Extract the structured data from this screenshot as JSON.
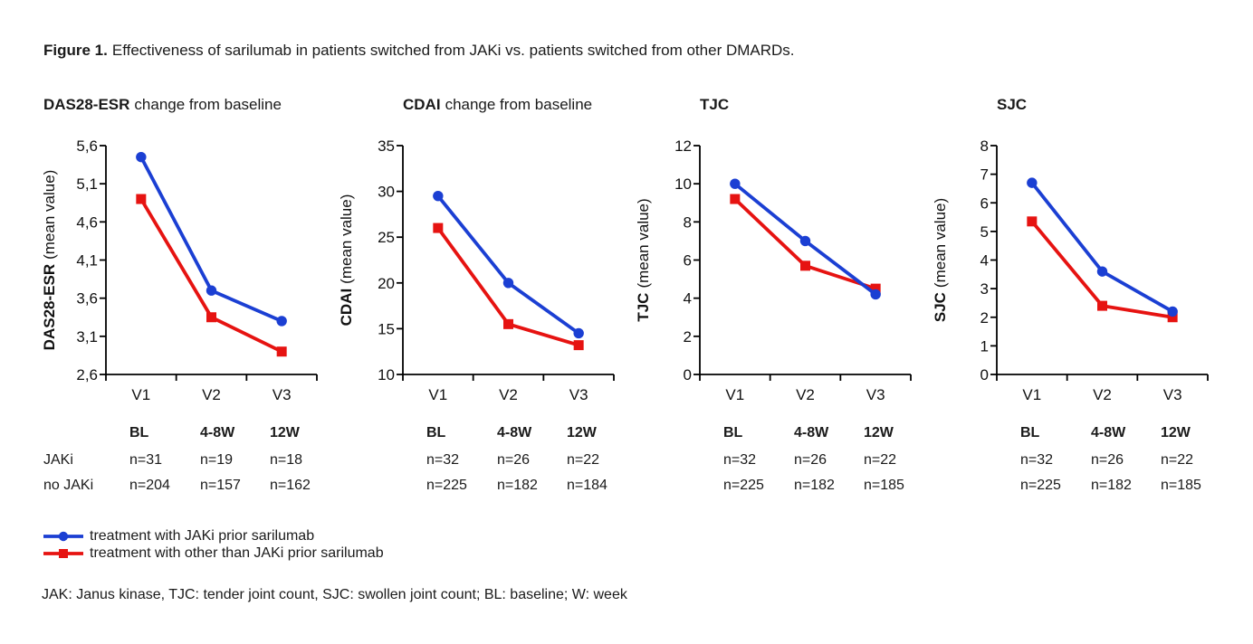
{
  "figure": {
    "label": "Figure 1.",
    "caption": "Effectiveness of sarilumab in patients switched from JAKi vs. patients switched from other DMARDs."
  },
  "colors": {
    "jaki": "#1b3fd3",
    "no_jaki": "#e61311"
  },
  "chart_data": [
    {
      "type": "line",
      "title_bold": "DAS28-ESR",
      "title_rest": "change from baseline",
      "ylabel_bold": "DAS28-ESR",
      "ylabel_rest": "(mean value)",
      "ylim": [
        2.6,
        5.6
      ],
      "ytick_labels": [
        "2,6",
        "3,1",
        "3,6",
        "4,1",
        "4,6",
        "5,1",
        "5,6"
      ],
      "categories": [
        "V1",
        "V2",
        "V3"
      ],
      "series": [
        {
          "name": "treatment with JAKi prior sarilumab",
          "marker": "circle",
          "color_key": "jaki",
          "values": [
            5.45,
            3.7,
            3.3
          ]
        },
        {
          "name": "treatment with other than JAKi prior sarilumab",
          "marker": "square",
          "color_key": "no_jaki",
          "values": [
            4.9,
            3.35,
            2.9
          ]
        }
      ],
      "table": {
        "headers": [
          "BL",
          "4-8W",
          "12W"
        ],
        "row_labels": [
          "JAKi",
          "no JAKi"
        ],
        "rows": [
          [
            "n=31",
            "n=19",
            "n=18"
          ],
          [
            "n=204",
            "n=157",
            "n=162"
          ]
        ]
      }
    },
    {
      "type": "line",
      "title_bold": "CDAI",
      "title_rest": "change from baseline",
      "ylabel_bold": "CDAI",
      "ylabel_rest": "(mean value)",
      "ylim": [
        10,
        35
      ],
      "ytick_labels": [
        "10",
        "15",
        "20",
        "25",
        "30",
        "35"
      ],
      "categories": [
        "V1",
        "V2",
        "V3"
      ],
      "series": [
        {
          "name": "treatment with JAKi prior sarilumab",
          "marker": "circle",
          "color_key": "jaki",
          "values": [
            29.5,
            20,
            14.5
          ]
        },
        {
          "name": "treatment with other than JAKi prior sarilumab",
          "marker": "square",
          "color_key": "no_jaki",
          "values": [
            26,
            15.5,
            13.2
          ]
        }
      ],
      "table": {
        "headers": [
          "BL",
          "4-8W",
          "12W"
        ],
        "rows": [
          [
            "n=32",
            "n=26",
            "n=22"
          ],
          [
            "n=225",
            "n=182",
            "n=184"
          ]
        ]
      }
    },
    {
      "type": "line",
      "title_bold": "TJC",
      "ylabel_bold": "TJC",
      "ylabel_rest": "(mean value)",
      "ylim": [
        0,
        12
      ],
      "ytick_labels": [
        "0",
        "2",
        "4",
        "6",
        "8",
        "10",
        "12"
      ],
      "categories": [
        "V1",
        "V2",
        "V3"
      ],
      "series": [
        {
          "name": "treatment with JAKi prior sarilumab",
          "marker": "circle",
          "color_key": "jaki",
          "values": [
            10,
            7,
            4.2
          ]
        },
        {
          "name": "treatment with other than JAKi prior sarilumab",
          "marker": "square",
          "color_key": "no_jaki",
          "values": [
            9.2,
            5.7,
            4.5
          ]
        }
      ],
      "table": {
        "headers": [
          "BL",
          "4-8W",
          "12W"
        ],
        "rows": [
          [
            "n=32",
            "n=26",
            "n=22"
          ],
          [
            "n=225",
            "n=182",
            "n=185"
          ]
        ]
      }
    },
    {
      "type": "line",
      "title_bold": "SJC",
      "ylabel_bold": "SJC",
      "ylabel_rest": "(mean value)",
      "ylim": [
        0,
        8
      ],
      "ytick_labels": [
        "0",
        "1",
        "2",
        "3",
        "4",
        "5",
        "6",
        "7",
        "8"
      ],
      "categories": [
        "V1",
        "V2",
        "V3"
      ],
      "series": [
        {
          "name": "treatment with JAKi prior sarilumab",
          "marker": "circle",
          "color_key": "jaki",
          "values": [
            6.7,
            3.6,
            2.2
          ]
        },
        {
          "name": "treatment with other than JAKi prior sarilumab",
          "marker": "square",
          "color_key": "no_jaki",
          "values": [
            5.35,
            2.4,
            2.0
          ]
        }
      ],
      "table": {
        "headers": [
          "BL",
          "4-8W",
          "12W"
        ],
        "rows": [
          [
            "n=32",
            "n=26",
            "n=22"
          ],
          [
            "n=225",
            "n=182",
            "n=185"
          ]
        ]
      }
    }
  ],
  "legend": [
    {
      "label": "treatment with JAKi prior sarilumab",
      "marker": "circle",
      "color_key": "jaki"
    },
    {
      "label": "treatment with other than JAKi prior sarilumab",
      "marker": "square",
      "color_key": "no_jaki"
    }
  ],
  "footnote": "JAK: Janus kinase, TJC: tender joint count, SJC: swollen joint count; BL: baseline; W: week"
}
